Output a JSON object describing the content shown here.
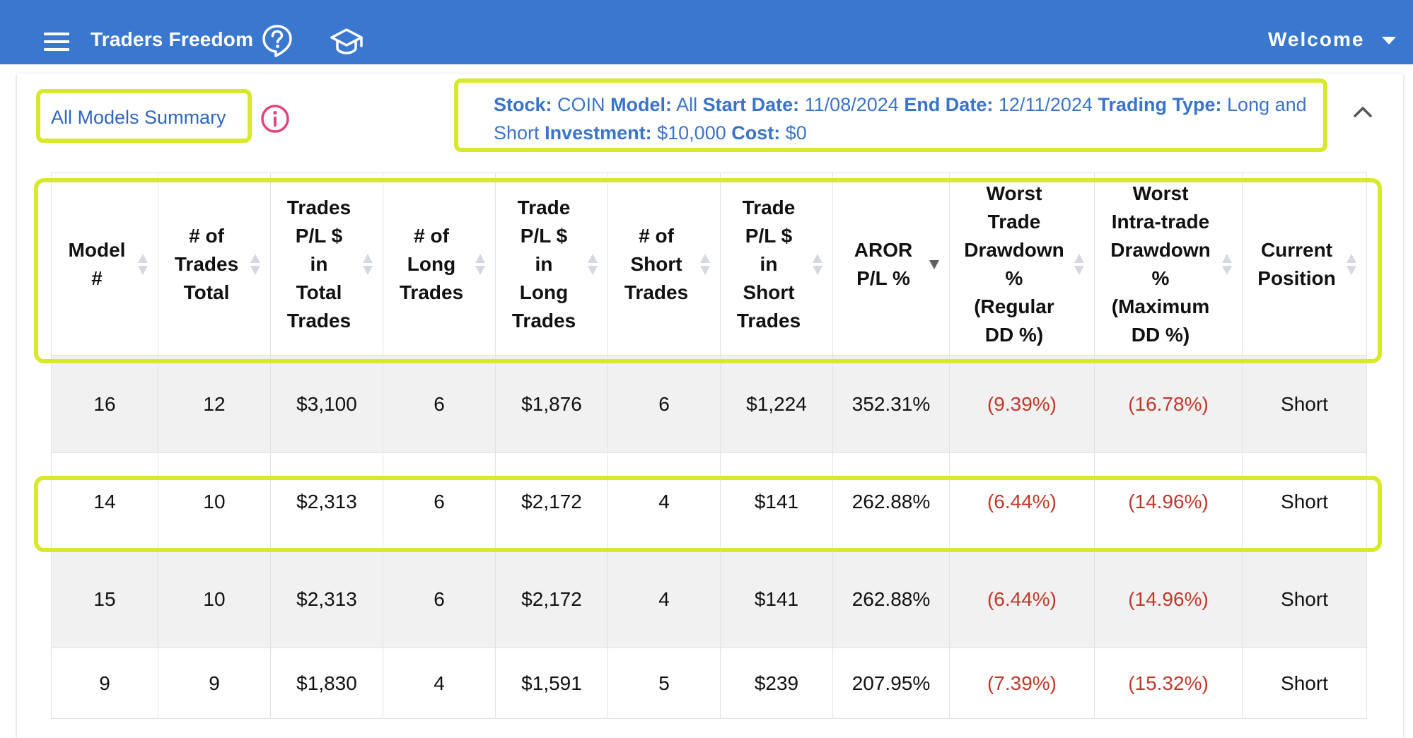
{
  "appbar": {
    "title": "Traders Freedom",
    "welcome_label": "Welcome",
    "icons": [
      "menu-icon",
      "help-icon",
      "graduation-cap-icon",
      "chevron-down-icon"
    ]
  },
  "summary": {
    "title": "All Models Summary",
    "info_icon": "info-icon"
  },
  "filters": {
    "stock_label": "Stock:",
    "stock": "COIN",
    "model_label": "Model:",
    "model": "All",
    "start_label": "Start Date:",
    "start": "11/08/2024",
    "end_label": "End Date:",
    "end": "12/11/2024",
    "type_label": "Trading Type:",
    "type": "Long and Short",
    "investment_label": "Investment:",
    "investment": "$10,000",
    "cost_label": "Cost:",
    "cost": "$0"
  },
  "table": {
    "columns": [
      {
        "lines": [
          "Model",
          "#"
        ],
        "sort": "none"
      },
      {
        "lines": [
          "# of",
          "Trades",
          "Total"
        ],
        "sort": "none"
      },
      {
        "lines": [
          "Trades",
          "P/L $",
          "in",
          "Total",
          "Trades"
        ],
        "sort": "none"
      },
      {
        "lines": [
          "# of",
          "Long",
          "Trades"
        ],
        "sort": "none"
      },
      {
        "lines": [
          "Trade",
          "P/L $",
          "in",
          "Long",
          "Trades"
        ],
        "sort": "none"
      },
      {
        "lines": [
          "# of",
          "Short",
          "Trades"
        ],
        "sort": "none"
      },
      {
        "lines": [
          "Trade",
          "P/L $",
          "in",
          "Short",
          "Trades"
        ],
        "sort": "none"
      },
      {
        "lines": [
          "AROR",
          "P/L %"
        ],
        "sort": "desc"
      },
      {
        "lines": [
          "Worst",
          "Trade",
          "Drawdown",
          "%",
          "(Regular",
          "DD %)"
        ],
        "sort": "none"
      },
      {
        "lines": [
          "Worst",
          "Intra-trade",
          "Drawdown",
          "%",
          "(Maximum",
          "DD %)"
        ],
        "sort": "none"
      },
      {
        "lines": [
          "Current",
          "Position"
        ],
        "sort": "none"
      }
    ],
    "rows": [
      [
        "16",
        "12",
        "$3,100",
        "6",
        "$1,876",
        "6",
        "$1,224",
        "352.31%",
        "(9.39%)",
        "(16.78%)",
        "Short"
      ],
      [
        "14",
        "10",
        "$2,313",
        "6",
        "$2,172",
        "4",
        "$141",
        "262.88%",
        "(6.44%)",
        "(14.96%)",
        "Short"
      ],
      [
        "15",
        "10",
        "$2,313",
        "6",
        "$2,172",
        "4",
        "$141",
        "262.88%",
        "(6.44%)",
        "(14.96%)",
        "Short"
      ],
      [
        "9",
        "9",
        "$1,830",
        "4",
        "$1,591",
        "5",
        "$239",
        "207.95%",
        "(7.39%)",
        "(15.32%)",
        "Short"
      ]
    ]
  },
  "colors": {
    "appbar": "#3a78cf",
    "link": "#2f66c1",
    "highlight": "#d8e82a",
    "negative": "#c0392b",
    "info": "#e0457b"
  }
}
